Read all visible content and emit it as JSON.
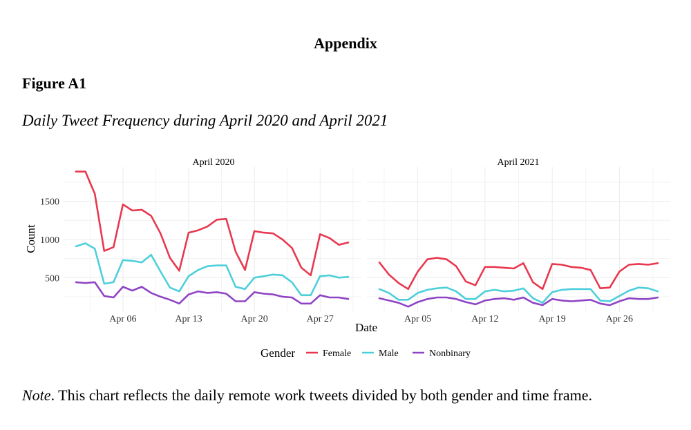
{
  "header": {
    "appendix_title": "Appendix",
    "figure_label": "Figure A1",
    "figure_caption": "Daily Tweet Frequency during April 2020 and April 2021"
  },
  "note": {
    "prefix": "Note",
    "text": ". This chart reflects the daily remote work tweets divided by both gender and time frame."
  },
  "colors": {
    "female": "#e8384f",
    "male": "#4dcfdb",
    "nonbinary": "#8e44c4",
    "grid": "#ebebeb"
  },
  "chart_data": {
    "type": "line",
    "xlabel": "Date",
    "ylabel": "Count",
    "ylim": [
      50,
      1950
    ],
    "yticks": [
      500,
      1000,
      1500
    ],
    "legend": {
      "title": "Gender",
      "entries": [
        "Female",
        "Male",
        "Nonbinary"
      ],
      "position": "bottom"
    },
    "panels": [
      {
        "title": "April 2020",
        "xticks": [
          "Apr 06",
          "Apr 13",
          "Apr 20",
          "Apr 27"
        ],
        "xtick_days": [
          6,
          13,
          20,
          27
        ],
        "x_start_day": 1,
        "series": [
          {
            "name": "Female",
            "values": [
              1890,
              1890,
              1600,
              850,
              900,
              1460,
              1380,
              1390,
              1310,
              1080,
              760,
              590,
              1090,
              1120,
              1170,
              1260,
              1270,
              840,
              600,
              1110,
              1090,
              1080,
              1000,
              890,
              630,
              530,
              1070,
              1020,
              930,
              960
            ]
          },
          {
            "name": "Male",
            "values": [
              910,
              950,
              880,
              420,
              440,
              730,
              720,
              700,
              800,
              580,
              370,
              320,
              520,
              600,
              650,
              660,
              660,
              380,
              350,
              500,
              520,
              540,
              530,
              440,
              270,
              270,
              520,
              530,
              500,
              510
            ]
          },
          {
            "name": "Nonbinary",
            "values": [
              440,
              430,
              440,
              260,
              240,
              380,
              330,
              380,
              300,
              250,
              210,
              160,
              280,
              320,
              300,
              310,
              290,
              190,
              190,
              310,
              290,
              280,
              250,
              240,
              160,
              160,
              270,
              240,
              240,
              220
            ]
          }
        ]
      },
      {
        "title": "April 2021",
        "xticks": [
          "Apr 05",
          "Apr 12",
          "Apr 19",
          "Apr 26"
        ],
        "xtick_days": [
          5,
          12,
          19,
          26
        ],
        "x_start_day": 1,
        "series": [
          {
            "name": "Female",
            "values": [
              700,
              540,
              430,
              350,
              580,
              740,
              760,
              740,
              650,
              450,
              400,
              640,
              640,
              630,
              620,
              690,
              440,
              350,
              680,
              670,
              640,
              630,
              600,
              360,
              370,
              580,
              670,
              680,
              670,
              690
            ]
          },
          {
            "name": "Male",
            "values": [
              350,
              300,
              210,
              210,
              300,
              340,
              360,
              370,
              320,
              220,
              220,
              320,
              340,
              320,
              330,
              360,
              230,
              170,
              310,
              340,
              350,
              350,
              350,
              200,
              190,
              260,
              330,
              370,
              360,
              320
            ]
          },
          {
            "name": "Nonbinary",
            "values": [
              230,
              200,
              170,
              120,
              180,
              220,
              240,
              240,
              220,
              180,
              150,
              200,
              220,
              230,
              210,
              240,
              170,
              140,
              220,
              200,
              190,
              200,
              210,
              160,
              140,
              190,
              230,
              220,
              220,
              240
            ]
          }
        ]
      }
    ]
  }
}
